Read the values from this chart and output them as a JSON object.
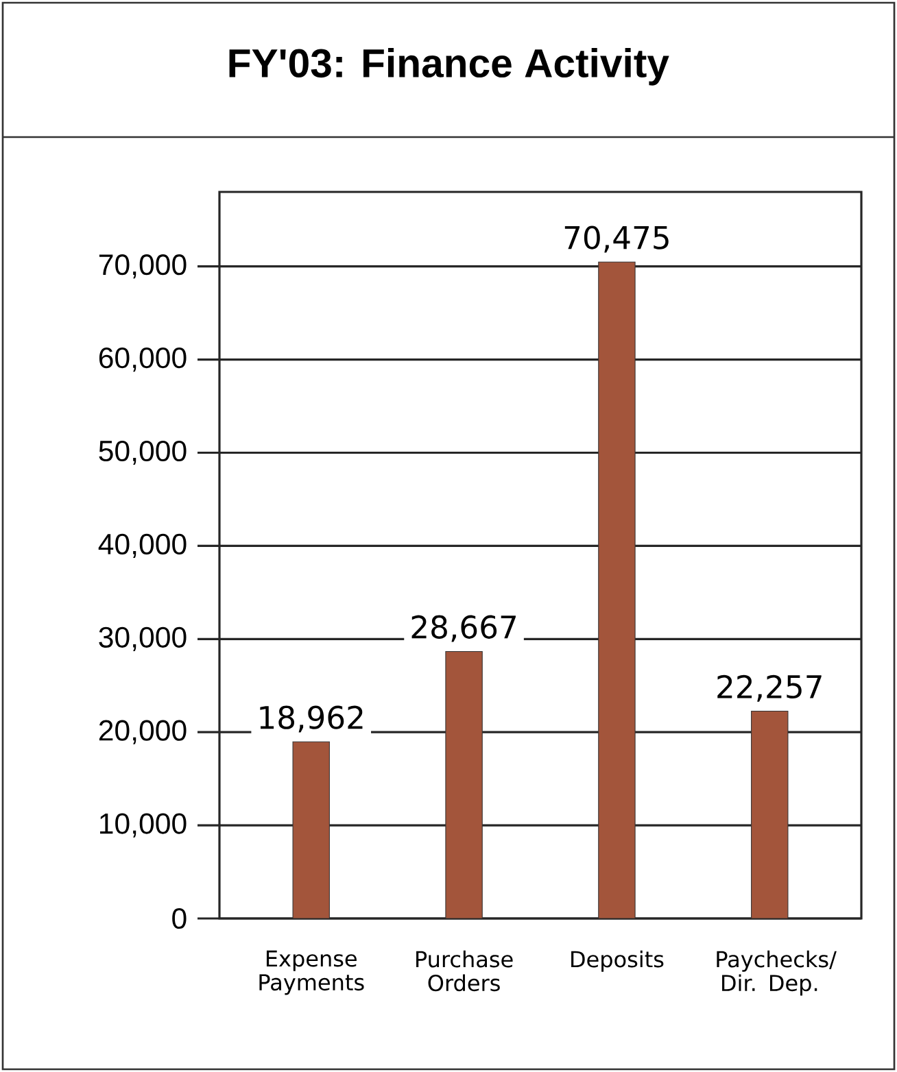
{
  "chart_data": {
    "type": "bar",
    "title": "FY'03: Finance Activity",
    "categories": [
      "Expense Payments",
      "Purchase Orders",
      "Deposits",
      "Paychecks/ Dir. Dep."
    ],
    "values": [
      18962,
      28667,
      70475,
      22257
    ],
    "color": "#a3553b",
    "ylim": [
      0,
      78000
    ],
    "yticks": [
      {
        "value": 0,
        "label": "0"
      },
      {
        "value": 10000,
        "label": "10,000"
      },
      {
        "value": 20000,
        "label": "20,000"
      },
      {
        "value": 30000,
        "label": "30,000"
      },
      {
        "value": 40000,
        "label": "40,000"
      },
      {
        "value": 50000,
        "label": "50,000"
      },
      {
        "value": 60000,
        "label": "60,000"
      },
      {
        "value": 70000,
        "label": "70,000"
      }
    ],
    "value_labels": [
      "18,962",
      "28,667",
      "70,475",
      "22,257"
    ],
    "grid": "y"
  }
}
